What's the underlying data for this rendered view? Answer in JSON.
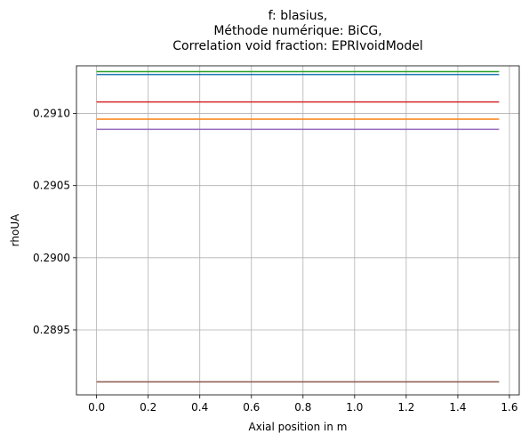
{
  "chart_data": {
    "type": "line",
    "title_lines": [
      "f: blasius,",
      "Méthode numérique: BiCG,",
      "Correlation void fraction: EPRIvoidModel"
    ],
    "xlabel": "Axial position in m",
    "ylabel": "rhoUA",
    "xlim": [
      -0.078,
      1.638
    ],
    "ylim": [
      0.28905,
      0.29133
    ],
    "x_ticks": [
      0.0,
      0.2,
      0.4,
      0.6,
      0.8,
      1.0,
      1.2,
      1.4,
      1.6
    ],
    "x_tick_labels": [
      "0.0",
      "0.2",
      "0.4",
      "0.6",
      "0.8",
      "1.0",
      "1.2",
      "1.4",
      "1.6"
    ],
    "y_ticks": [
      0.2895,
      0.29,
      0.2905,
      0.291
    ],
    "y_tick_labels": [
      "0.2895",
      "0.2900",
      "0.2905",
      "0.2910"
    ],
    "grid": true,
    "legend": false,
    "series": [
      {
        "color": "#1f77b4",
        "x": [
          0.0,
          1.56
        ],
        "y": [
          0.29127,
          0.29127
        ]
      },
      {
        "color": "#ff7f0e",
        "x": [
          0.0,
          1.56
        ],
        "y": [
          0.29096,
          0.29096
        ]
      },
      {
        "color": "#2ca02c",
        "x": [
          0.0,
          1.56
        ],
        "y": [
          0.29129,
          0.29129
        ]
      },
      {
        "color": "#d62728",
        "x": [
          0.0,
          1.56
        ],
        "y": [
          0.29108,
          0.29108
        ]
      },
      {
        "color": "#9467bd",
        "x": [
          0.0,
          1.56
        ],
        "y": [
          0.29089,
          0.29089
        ]
      },
      {
        "color": "#8c564b",
        "x": [
          0.0,
          1.56
        ],
        "y": [
          0.28914,
          0.28914
        ]
      }
    ]
  }
}
